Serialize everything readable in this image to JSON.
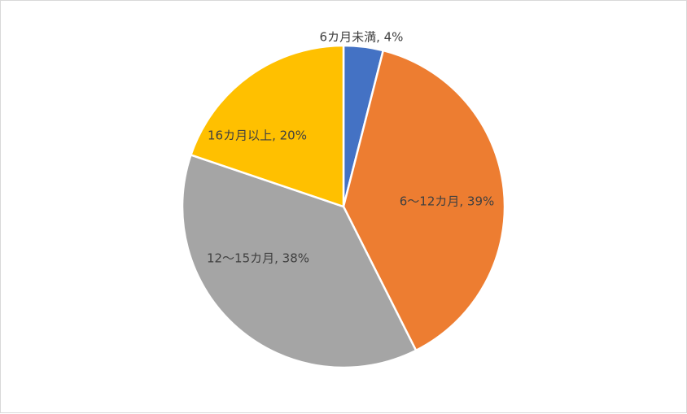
{
  "chart_data": {
    "type": "pie",
    "title": "",
    "start_angle_deg": 0,
    "direction": "clockwise",
    "legend": "none",
    "slices": [
      {
        "label": "6カ月未満, 4%",
        "category": "6カ月未満",
        "value": 4,
        "color": "#4472C4"
      },
      {
        "label": "6～12カ月, 39%",
        "category": "6～12カ月",
        "value": 39,
        "color": "#ED7D31"
      },
      {
        "label": "12～15カ月, 38%",
        "category": "12～15カ月",
        "value": 38,
        "color": "#A5A5A5"
      },
      {
        "label": "16カ月以上, 20%",
        "category": "16カ月以上",
        "value": 20,
        "color": "#FFC000"
      }
    ]
  }
}
